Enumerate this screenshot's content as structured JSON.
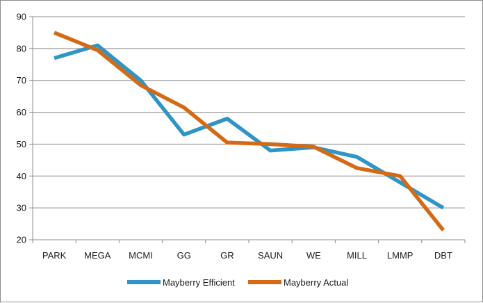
{
  "chart_data": {
    "type": "line",
    "title": "",
    "xlabel": "",
    "ylabel": "",
    "categories": [
      "PARK",
      "MEGA",
      "MCMI",
      "GG",
      "GR",
      "SAUN",
      "WE",
      "MILL",
      "LMMP",
      "DBT"
    ],
    "ylim": [
      20,
      90
    ],
    "yticks": [
      20,
      30,
      40,
      50,
      60,
      70,
      80,
      90
    ],
    "grid": true,
    "legend_position": "bottom",
    "series": [
      {
        "name": "Mayberry Efficient",
        "color": "#2e95c6",
        "values": [
          77,
          81,
          70,
          53,
          58,
          48,
          49,
          46,
          38,
          30
        ]
      },
      {
        "name": "Mayberry Actual",
        "color": "#d46a16",
        "values": [
          85,
          79.5,
          68.5,
          61.5,
          50.5,
          50,
          49.2,
          42.5,
          40,
          23
        ]
      }
    ]
  }
}
